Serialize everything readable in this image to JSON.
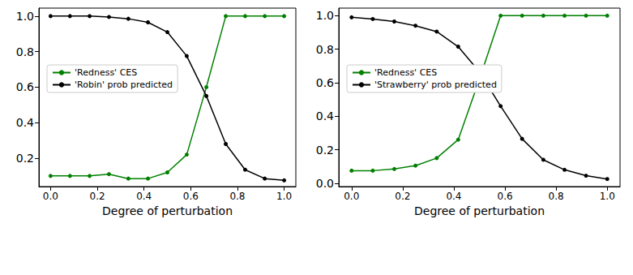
{
  "chart_data": [
    {
      "type": "line",
      "x_label": "Degree of perturbation",
      "x": [
        0,
        0.083,
        0.167,
        0.25,
        0.333,
        0.417,
        0.5,
        0.583,
        0.667,
        0.75,
        0.833,
        0.917,
        1.0
      ],
      "series": [
        {
          "name": "'Redness' CES",
          "color": "#008000",
          "marker": "circle",
          "line_style": "solid",
          "values": [
            0.1,
            0.1,
            0.1,
            0.11,
            0.085,
            0.085,
            0.12,
            0.22,
            0.6,
            1.0,
            1.0,
            1.0,
            1.0
          ]
        },
        {
          "name": "'Robin' prob predicted",
          "color": "#000000",
          "marker": "circle",
          "line_style": "solid",
          "values": [
            1.0,
            1.0,
            1.0,
            0.995,
            0.985,
            0.965,
            0.91,
            0.775,
            0.55,
            0.28,
            0.135,
            0.085,
            0.075
          ]
        }
      ],
      "xlim": [
        -0.05,
        1.05
      ],
      "xticks": [
        {
          "value": 0,
          "label": "0.0"
        },
        0.2,
        0.4,
        0.6,
        0.8,
        {
          "value": 1,
          "label": "1.0"
        }
      ],
      "ylim": [
        0.04,
        1.045
      ],
      "yticks": [
        0.2,
        0.4,
        0.6,
        0.8,
        {
          "value": 1,
          "label": "1.0"
        }
      ],
      "grid": false,
      "legend": "left"
    },
    {
      "type": "line",
      "x_label": "Degree of perturbation",
      "x": [
        0,
        0.083,
        0.167,
        0.25,
        0.333,
        0.417,
        0.5,
        0.583,
        0.667,
        0.75,
        0.833,
        0.917,
        1.0
      ],
      "series": [
        {
          "name": "'Redness' CES",
          "color": "#008000",
          "marker": "circle",
          "line_style": "solid",
          "values": [
            0.075,
            0.075,
            0.085,
            0.105,
            0.15,
            0.26,
            0.62,
            1.0,
            1.0,
            1.0,
            1.0,
            1.0,
            1.0
          ]
        },
        {
          "name": "'Strawberry' prob predicted",
          "color": "#000000",
          "marker": "circle",
          "line_style": "solid",
          "values": [
            0.99,
            0.98,
            0.965,
            0.94,
            0.905,
            0.815,
            0.665,
            0.46,
            0.265,
            0.14,
            0.08,
            0.045,
            0.025
          ]
        }
      ],
      "xlim": [
        -0.05,
        1.05
      ],
      "xticks": [
        {
          "value": 0,
          "label": "0.0"
        },
        0.2,
        0.4,
        0.6,
        0.8,
        {
          "value": 1,
          "label": "1.0"
        }
      ],
      "ylim": [
        -0.02,
        1.045
      ],
      "yticks": [
        {
          "value": 0,
          "label": "0.0"
        },
        0.2,
        0.4,
        0.6,
        0.8,
        {
          "value": 1,
          "label": "1.0"
        }
      ],
      "grid": false,
      "legend": "left"
    }
  ]
}
